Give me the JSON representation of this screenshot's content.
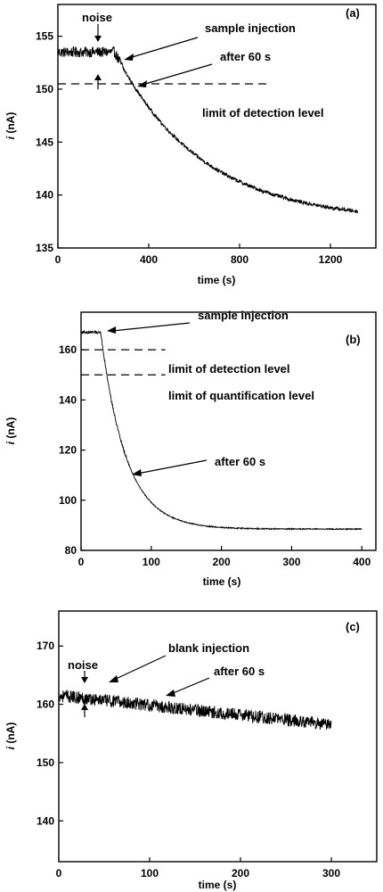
{
  "chart_data": [
    {
      "type": "line",
      "panel_label": "(a)",
      "xlabel": "time (s)",
      "ylabel_italic": "i",
      "ylabel_unit": " (nA)",
      "xlim": [
        0,
        1400
      ],
      "ylim": [
        135,
        158
      ],
      "xticks": [
        0,
        400,
        800,
        1200
      ],
      "yticks": [
        135,
        140,
        145,
        150,
        155
      ],
      "trace": {
        "baseline": 153.5,
        "end_time": 1320,
        "injection_time": 250,
        "final": 137.5,
        "tau": 380,
        "noise_amplitude": 0.5
      },
      "limit_of_detection": 150.5,
      "limit_line_x": [
        0,
        940
      ],
      "annotations": [
        {
          "text": "noise",
          "at": [
            150,
            153.5
          ],
          "type": "noise"
        },
        {
          "text": "sample injection",
          "at": [
            270,
            153.6
          ]
        },
        {
          "text": "after 60 s",
          "at": [
            330,
            151.0
          ]
        },
        {
          "text": "limit of detection level"
        }
      ]
    },
    {
      "type": "line",
      "panel_label": "(b)",
      "xlabel": "time (s)",
      "ylabel_italic": "i",
      "ylabel_unit": " (nA)",
      "xlim": [
        0,
        420
      ],
      "ylim": [
        80,
        175
      ],
      "xticks": [
        0,
        100,
        200,
        300,
        400
      ],
      "yticks": [
        80,
        100,
        120,
        140,
        160
      ],
      "trace": {
        "baseline": 167,
        "end_time": 400,
        "injection_time": 28,
        "final": 88.5,
        "tau": 36,
        "noise_amplitude": 0.6
      },
      "limit_of_detection": 160,
      "limit_of_quantification": 150,
      "limit_line_x": [
        0,
        120
      ],
      "annotations": [
        {
          "text": "sample injection",
          "at": [
            28,
            166
          ]
        },
        {
          "text": "limit of detection level"
        },
        {
          "text": "limit of quantification level"
        },
        {
          "text": "after 60 s",
          "at": [
            86,
            111
          ]
        }
      ]
    },
    {
      "type": "line",
      "panel_label": "(c)",
      "xlabel": "time (s)",
      "ylabel_italic": "i",
      "ylabel_unit": " (nA)",
      "xlim": [
        0,
        350
      ],
      "ylim": [
        133,
        176
      ],
      "xticks": [
        0,
        100,
        200,
        300
      ],
      "yticks": [
        140,
        150,
        160,
        170
      ],
      "trace": {
        "start_value": 161.5,
        "end_value": 156.5,
        "end_time": 300,
        "noise_amplitude": 1.1
      },
      "annotations": [
        {
          "text": "noise",
          "at": [
            30,
            161.5
          ],
          "type": "noise"
        },
        {
          "text": "blank injection",
          "at": [
            55,
            162
          ]
        },
        {
          "text": "after 60 s",
          "at": [
            115,
            160
          ]
        }
      ]
    }
  ]
}
